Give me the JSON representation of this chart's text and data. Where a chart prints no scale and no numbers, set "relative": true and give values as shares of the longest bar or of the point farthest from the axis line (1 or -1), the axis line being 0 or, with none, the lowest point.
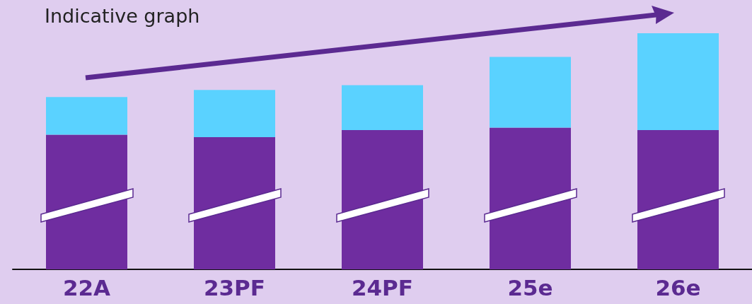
{
  "chart_data": {
    "type": "bar",
    "title": "Indicative graph",
    "categories": [
      "22A",
      "23PF",
      "24PF",
      "25e",
      "26e"
    ],
    "relative": true,
    "stacked": true,
    "series": [
      {
        "color": "#6f2da0",
        "values": [
          0.57,
          0.56,
          0.59,
          0.6,
          0.59
        ]
      },
      {
        "color": "#5ad2ff",
        "values": [
          0.16,
          0.2,
          0.19,
          0.3,
          0.41
        ]
      }
    ]
  }
}
